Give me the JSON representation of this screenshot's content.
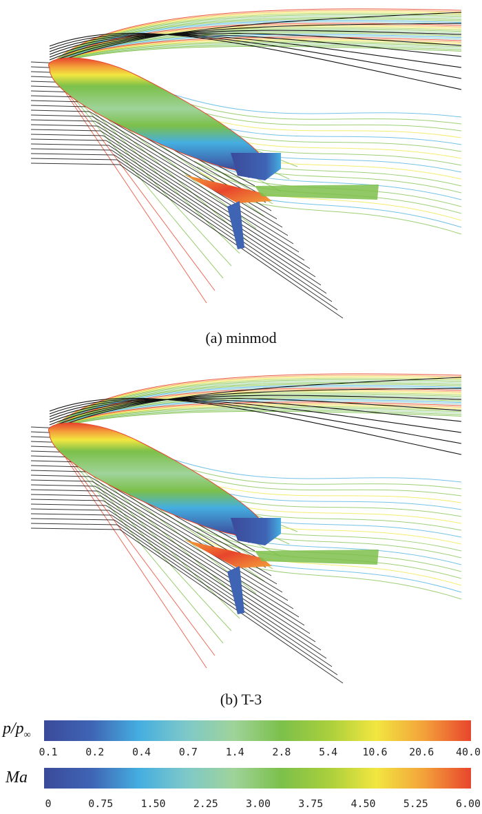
{
  "figure": {
    "panels": [
      {
        "caption": "(a) minmod"
      },
      {
        "caption": "(b)  T-3"
      }
    ],
    "colorbars": [
      {
        "label_main": "p/p",
        "label_sub": "∞",
        "ticks": [
          "0.1",
          "0.2",
          "0.4",
          "0.7",
          "1.4",
          "2.8",
          "5.4",
          "10.6",
          "20.6",
          "40.0"
        ],
        "colors": [
          "#3b4a9a",
          "#3f64b4",
          "#45aee0",
          "#7ec8c9",
          "#9fd39a",
          "#7cc04a",
          "#a9cf3c",
          "#f2e640",
          "#f3a23a",
          "#e8452c"
        ]
      },
      {
        "label": "Ma",
        "ticks": [
          "0",
          "0.75",
          "1.50",
          "2.25",
          "3.00",
          "3.75",
          "4.50",
          "5.25",
          "6.00"
        ],
        "colors": [
          "#3b4a9a",
          "#3f64b4",
          "#45aee0",
          "#7ec8c9",
          "#9fd39a",
          "#7cc04a",
          "#a9cf3c",
          "#f2e640",
          "#f3a23a",
          "#e8452c"
        ]
      }
    ]
  }
}
